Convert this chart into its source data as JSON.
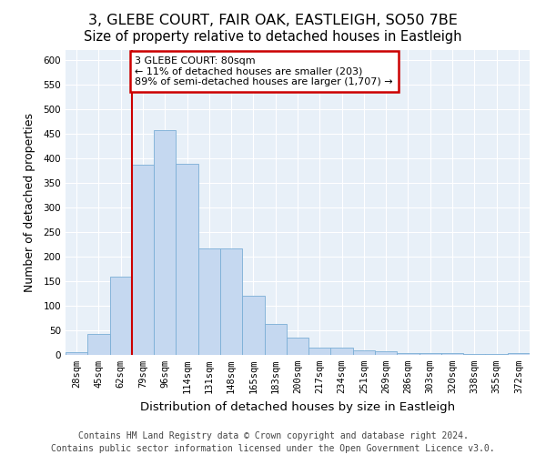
{
  "title": "3, GLEBE COURT, FAIR OAK, EASTLEIGH, SO50 7BE",
  "subtitle": "Size of property relative to detached houses in Eastleigh",
  "xlabel": "Distribution of detached houses by size in Eastleigh",
  "ylabel": "Number of detached properties",
  "categories": [
    "28sqm",
    "45sqm",
    "62sqm",
    "79sqm",
    "96sqm",
    "114sqm",
    "131sqm",
    "148sqm",
    "165sqm",
    "183sqm",
    "200sqm",
    "217sqm",
    "234sqm",
    "251sqm",
    "269sqm",
    "286sqm",
    "303sqm",
    "320sqm",
    "338sqm",
    "355sqm",
    "372sqm"
  ],
  "values": [
    5,
    43,
    160,
    387,
    458,
    388,
    217,
    217,
    120,
    63,
    35,
    15,
    15,
    10,
    7,
    4,
    4,
    3,
    2,
    2,
    3
  ],
  "bar_color": "#c5d8f0",
  "bar_edge_color": "#7aaed6",
  "annotation_text": "3 GLEBE COURT: 80sqm\n← 11% of detached houses are smaller (203)\n89% of semi-detached houses are larger (1,707) →",
  "annotation_box_color": "#ffffff",
  "annotation_box_edge_color": "#cc0000",
  "vline_color": "#cc0000",
  "vline_x_index": 3,
  "footer_line1": "Contains HM Land Registry data © Crown copyright and database right 2024.",
  "footer_line2": "Contains public sector information licensed under the Open Government Licence v3.0.",
  "fig_bg_color": "#ffffff",
  "plot_bg_color": "#e8f0f8",
  "grid_color": "#ffffff",
  "ylim": [
    0,
    620
  ],
  "yticks": [
    0,
    50,
    100,
    150,
    200,
    250,
    300,
    350,
    400,
    450,
    500,
    550,
    600
  ],
  "title_fontsize": 11.5,
  "axis_label_fontsize": 9,
  "tick_fontsize": 7.5,
  "footer_fontsize": 7
}
